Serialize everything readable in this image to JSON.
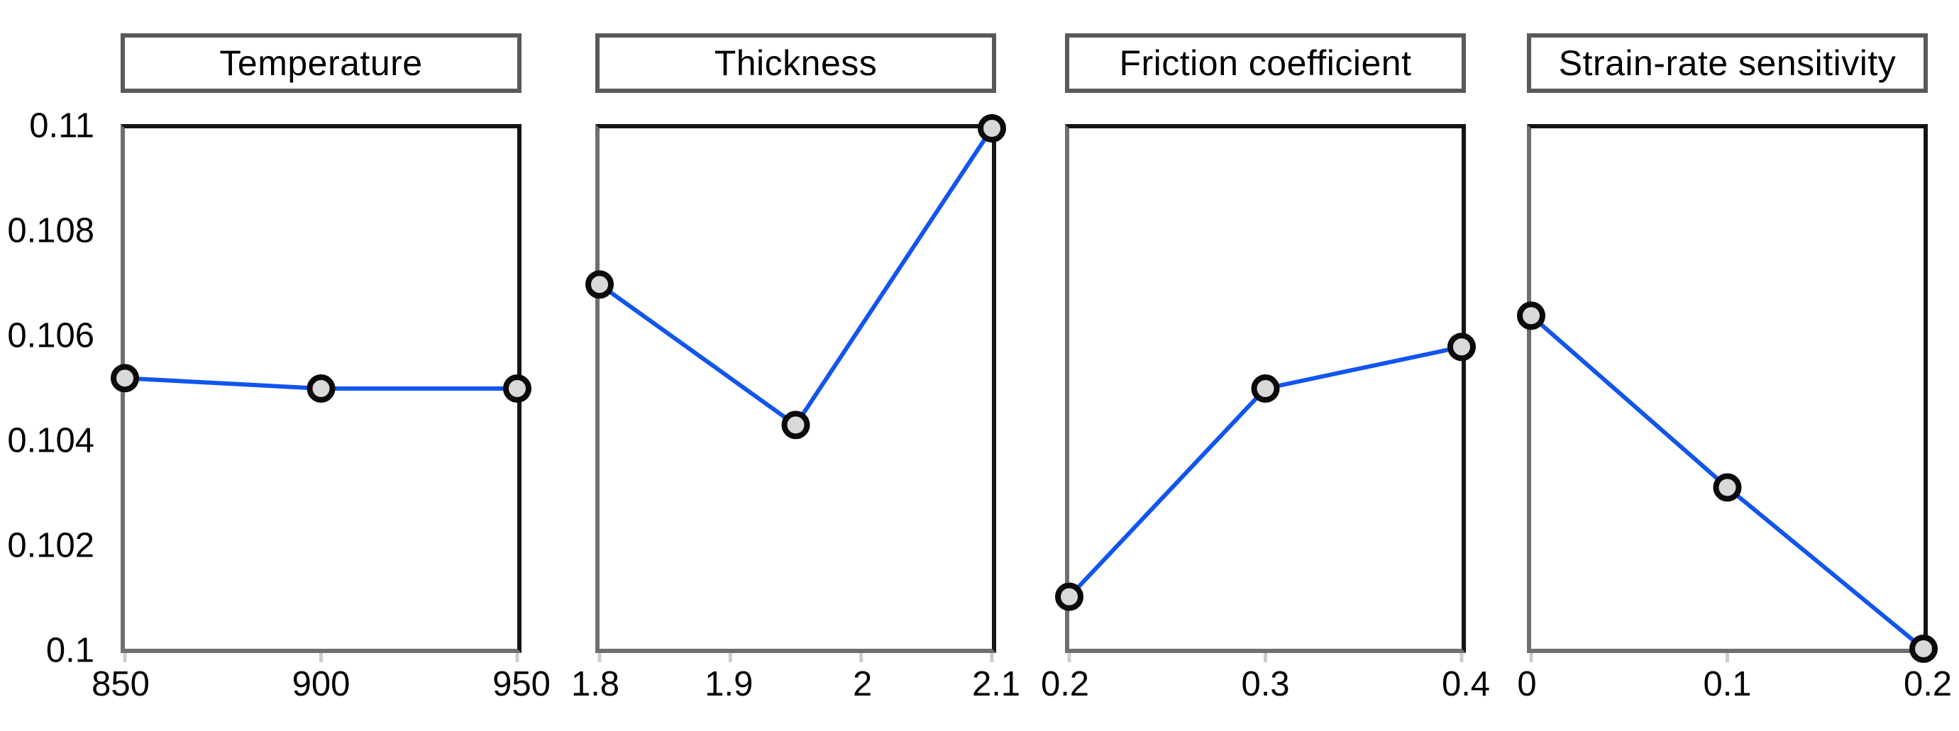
{
  "figure_style": {
    "background": "#ffffff",
    "line_color": "#1155ee",
    "marker_fill": "#d9d9d9",
    "marker_stroke": "#0a0a0a",
    "plot_border_dark": "#141414",
    "plot_border_gray": "#6f6f6f",
    "title_border": "#595959",
    "tick_mark_color": "#cccccc",
    "text_color": "#000000"
  },
  "yaxis": {
    "ylim": [
      0.1,
      0.11
    ],
    "ticks": [
      0.11,
      0.108,
      0.106,
      0.104,
      0.102,
      0.1
    ],
    "tick_labels": [
      "0.11",
      "0.108",
      "0.106",
      "0.104",
      "0.102",
      "0.1"
    ]
  },
  "chart_data": [
    {
      "type": "line",
      "title": "Temperature",
      "x": [
        850,
        900,
        950
      ],
      "values": [
        0.1052,
        0.105,
        0.105
      ],
      "xlim": [
        850,
        950
      ],
      "xticks": [
        850,
        900,
        950
      ],
      "xtick_labels": [
        "850",
        "900",
        "950"
      ],
      "ylim": [
        0.1,
        0.11
      ],
      "grid": false,
      "legend": false
    },
    {
      "type": "line",
      "title": "Thickness",
      "x": [
        1.8,
        1.95,
        2.1
      ],
      "values": [
        0.107,
        0.1043,
        0.11
      ],
      "xlim": [
        1.8,
        2.1
      ],
      "xticks": [
        1.8,
        1.9,
        2,
        2.1
      ],
      "xtick_labels": [
        "1.8",
        "1.9",
        "2",
        "2.1"
      ],
      "ylim": [
        0.1,
        0.11
      ],
      "grid": false,
      "legend": false
    },
    {
      "type": "line",
      "title": "Friction coefficient",
      "x": [
        0.2,
        0.3,
        0.4
      ],
      "values": [
        0.101,
        0.105,
        0.1058
      ],
      "xlim": [
        0.2,
        0.4
      ],
      "xticks": [
        0.2,
        0.3,
        0.4
      ],
      "xtick_labels": [
        "0.2",
        "0.3",
        "0.4"
      ],
      "ylim": [
        0.1,
        0.11
      ],
      "grid": false,
      "legend": false
    },
    {
      "type": "line",
      "title": "Strain-rate sensitivity",
      "x": [
        0,
        0.1,
        0.2
      ],
      "values": [
        0.1064,
        0.1031,
        0.1
      ],
      "xlim": [
        0,
        0.2
      ],
      "xticks": [
        0,
        0.1,
        0.2
      ],
      "xtick_labels": [
        "0",
        "0.1",
        "0.2"
      ],
      "ylim": [
        0.1,
        0.11
      ],
      "grid": false,
      "legend": false
    }
  ]
}
